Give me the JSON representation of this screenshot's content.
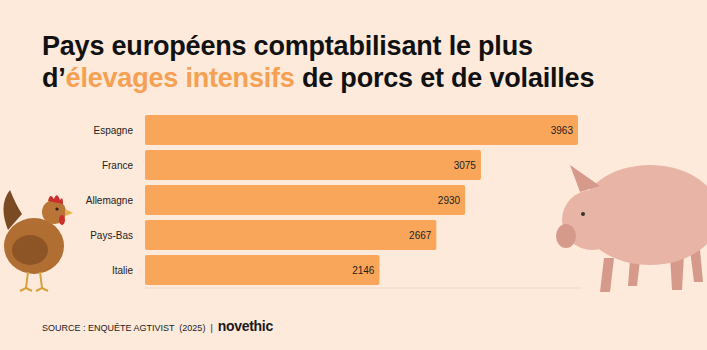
{
  "chart_data": {
    "type": "bar",
    "orientation": "horizontal",
    "title": [
      "Pays européens comptabilisant le plus d’",
      "élevages intensifs",
      " de porcs et de volailles"
    ],
    "categories": [
      "Espagne",
      "France",
      "Allemagne",
      "Pays-Bas",
      "Italie"
    ],
    "values": [
      3963,
      3075,
      2930,
      2667,
      2146
    ],
    "color": "#f9a65a",
    "xlim": [
      0,
      4000
    ],
    "grid": false,
    "data_labels": true,
    "tick_labels": false,
    "annotations": [
      "SOURCE : ENQUÊTE AGTIVIST  (2025)",
      "|",
      "novethic"
    ]
  }
}
